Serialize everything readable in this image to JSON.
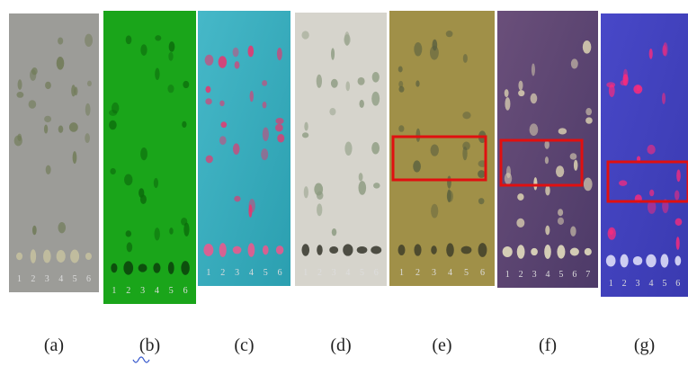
{
  "panels": [
    {
      "label": "(a)",
      "lanes": [
        "1",
        "2",
        "3",
        "4",
        "5",
        "6"
      ]
    },
    {
      "label": "(b)",
      "lanes": [
        "1",
        "2",
        "3",
        "4",
        "5",
        "6"
      ]
    },
    {
      "label": "(c)",
      "lanes": [
        "1",
        "2",
        "3",
        "4",
        "5",
        "6"
      ]
    },
    {
      "label": "(d)",
      "lanes": [
        "1",
        "2",
        "3",
        "4",
        "5",
        "6"
      ]
    },
    {
      "label": "(e)",
      "lanes": [
        "1",
        "2",
        "3",
        "4",
        "5",
        "6"
      ]
    },
    {
      "label": "(f)",
      "lanes": [
        "1",
        "2",
        "3",
        "4",
        "5",
        "6",
        "7"
      ]
    },
    {
      "label": "(g)",
      "lanes": [
        "1",
        "2",
        "3",
        "4",
        "5",
        "6"
      ]
    }
  ]
}
